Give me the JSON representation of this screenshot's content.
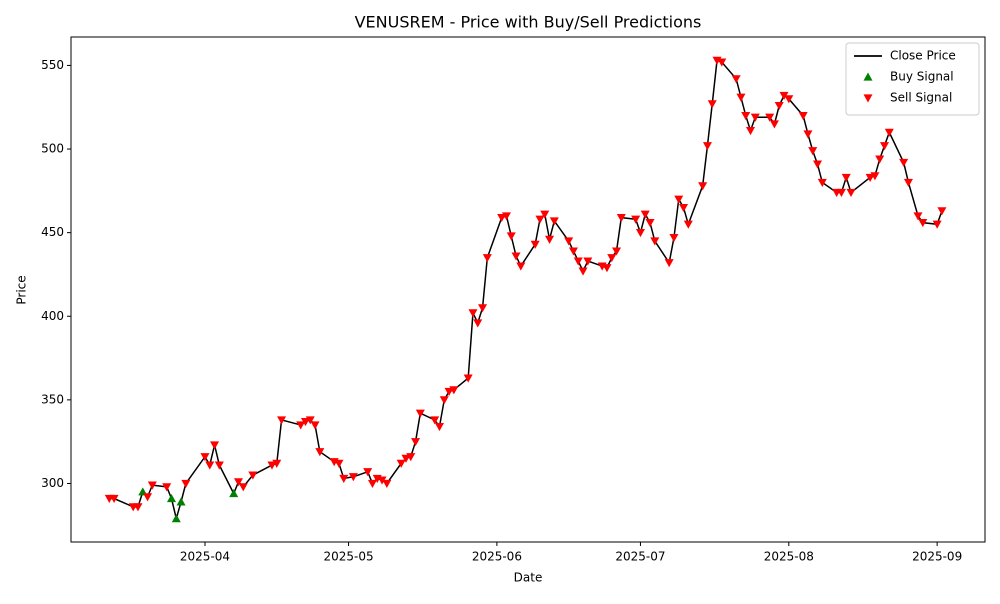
{
  "chart_data": {
    "type": "line",
    "title": "VENUSREM - Price with Buy/Sell Predictions",
    "x_label": "Date",
    "y_label": "Price",
    "xlim": [
      "2025-03-04",
      "2025-09-11"
    ],
    "xticks": [
      {
        "value": "2025-04-01",
        "label": "2025-04"
      },
      {
        "value": "2025-05-01",
        "label": "2025-05"
      },
      {
        "value": "2025-06-01",
        "label": "2025-06"
      },
      {
        "value": "2025-07-01",
        "label": "2025-07"
      },
      {
        "value": "2025-08-01",
        "label": "2025-08"
      },
      {
        "value": "2025-09-01",
        "label": "2025-09"
      }
    ],
    "ylim": [
      265,
      567
    ],
    "yticks": [
      300,
      350,
      400,
      450,
      500,
      550
    ],
    "legend": "upper right",
    "series": [
      {
        "name": "Close Price",
        "type": "line",
        "color": "#000000",
        "x": [
          "2025-03-12",
          "2025-03-13",
          "2025-03-17",
          "2025-03-18",
          "2025-03-19",
          "2025-03-20",
          "2025-03-21",
          "2025-03-24",
          "2025-03-25",
          "2025-03-26",
          "2025-03-27",
          "2025-03-28",
          "2025-04-01",
          "2025-04-02",
          "2025-04-03",
          "2025-04-04",
          "2025-04-07",
          "2025-04-08",
          "2025-04-09",
          "2025-04-11",
          "2025-04-15",
          "2025-04-16",
          "2025-04-17",
          "2025-04-21",
          "2025-04-22",
          "2025-04-23",
          "2025-04-24",
          "2025-04-25",
          "2025-04-28",
          "2025-04-29",
          "2025-04-30",
          "2025-05-02",
          "2025-05-05",
          "2025-05-06",
          "2025-05-07",
          "2025-05-08",
          "2025-05-09",
          "2025-05-12",
          "2025-05-13",
          "2025-05-14",
          "2025-05-15",
          "2025-05-16",
          "2025-05-19",
          "2025-05-20",
          "2025-05-21",
          "2025-05-22",
          "2025-05-23",
          "2025-05-26",
          "2025-05-27",
          "2025-05-28",
          "2025-05-29",
          "2025-05-30",
          "2025-06-02",
          "2025-06-03",
          "2025-06-04",
          "2025-06-05",
          "2025-06-06",
          "2025-06-09",
          "2025-06-10",
          "2025-06-11",
          "2025-06-12",
          "2025-06-13",
          "2025-06-16",
          "2025-06-17",
          "2025-06-18",
          "2025-06-19",
          "2025-06-20",
          "2025-06-23",
          "2025-06-24",
          "2025-06-25",
          "2025-06-26",
          "2025-06-27",
          "2025-06-30",
          "2025-07-01",
          "2025-07-02",
          "2025-07-03",
          "2025-07-04",
          "2025-07-07",
          "2025-07-08",
          "2025-07-09",
          "2025-07-10",
          "2025-07-11",
          "2025-07-14",
          "2025-07-15",
          "2025-07-16",
          "2025-07-17",
          "2025-07-18",
          "2025-07-21",
          "2025-07-22",
          "2025-07-23",
          "2025-07-24",
          "2025-07-25",
          "2025-07-28",
          "2025-07-29",
          "2025-07-30",
          "2025-07-31",
          "2025-08-01",
          "2025-08-04",
          "2025-08-05",
          "2025-08-06",
          "2025-08-07",
          "2025-08-08",
          "2025-08-11",
          "2025-08-12",
          "2025-08-13",
          "2025-08-14",
          "2025-08-18",
          "2025-08-19",
          "2025-08-20",
          "2025-08-21",
          "2025-08-22",
          "2025-08-25",
          "2025-08-26",
          "2025-08-28",
          "2025-08-29",
          "2025-09-01",
          "2025-09-02"
        ],
        "values": [
          291,
          291,
          286,
          286,
          295,
          292,
          299,
          298,
          291,
          279,
          289,
          300,
          316,
          311,
          323,
          311,
          294,
          301,
          298,
          305,
          311,
          312,
          338,
          335,
          337,
          338,
          335,
          319,
          313,
          312,
          303,
          304,
          307,
          300,
          303,
          302,
          300,
          312,
          315,
          316,
          325,
          342,
          338,
          334,
          350,
          355,
          356,
          363,
          402,
          396,
          405,
          435,
          459,
          460,
          448,
          436,
          430,
          443,
          458,
          461,
          446,
          457,
          445,
          439,
          433,
          427,
          433,
          430,
          429,
          435,
          439,
          459,
          458,
          450,
          461,
          456,
          445,
          432,
          447,
          470,
          465,
          455,
          478,
          502,
          527,
          553,
          552,
          542,
          531,
          520,
          511,
          519,
          519,
          515,
          526,
          532,
          530,
          520,
          509,
          499,
          491,
          480,
          474,
          474,
          483,
          474,
          483,
          484,
          494,
          502,
          510,
          492,
          480,
          460,
          456,
          455,
          463
        ]
      },
      {
        "name": "Buy Signal",
        "type": "scatter",
        "marker": "up",
        "color": "#008000",
        "x": [
          "2025-03-19",
          "2025-03-25",
          "2025-03-26",
          "2025-03-27",
          "2025-04-07"
        ],
        "values": [
          295,
          291,
          279,
          289,
          294
        ]
      },
      {
        "name": "Sell Signal",
        "type": "scatter",
        "marker": "down",
        "color": "#ff0000",
        "x": [
          "2025-03-12",
          "2025-03-13",
          "2025-03-17",
          "2025-03-18",
          "2025-03-20",
          "2025-03-21",
          "2025-03-24",
          "2025-03-28",
          "2025-04-01",
          "2025-04-02",
          "2025-04-03",
          "2025-04-04",
          "2025-04-08",
          "2025-04-09",
          "2025-04-11",
          "2025-04-15",
          "2025-04-16",
          "2025-04-17",
          "2025-04-21",
          "2025-04-22",
          "2025-04-23",
          "2025-04-24",
          "2025-04-25",
          "2025-04-28",
          "2025-04-29",
          "2025-04-30",
          "2025-05-02",
          "2025-05-05",
          "2025-05-06",
          "2025-05-07",
          "2025-05-08",
          "2025-05-09",
          "2025-05-12",
          "2025-05-13",
          "2025-05-14",
          "2025-05-15",
          "2025-05-16",
          "2025-05-19",
          "2025-05-20",
          "2025-05-21",
          "2025-05-22",
          "2025-05-23",
          "2025-05-26",
          "2025-05-27",
          "2025-05-28",
          "2025-05-29",
          "2025-05-30",
          "2025-06-02",
          "2025-06-03",
          "2025-06-04",
          "2025-06-05",
          "2025-06-06",
          "2025-06-09",
          "2025-06-10",
          "2025-06-11",
          "2025-06-12",
          "2025-06-13",
          "2025-06-16",
          "2025-06-17",
          "2025-06-18",
          "2025-06-19",
          "2025-06-20",
          "2025-06-23",
          "2025-06-24",
          "2025-06-25",
          "2025-06-26",
          "2025-06-27",
          "2025-06-30",
          "2025-07-01",
          "2025-07-02",
          "2025-07-03",
          "2025-07-04",
          "2025-07-07",
          "2025-07-08",
          "2025-07-09",
          "2025-07-10",
          "2025-07-11",
          "2025-07-14",
          "2025-07-15",
          "2025-07-16",
          "2025-07-17",
          "2025-07-18",
          "2025-07-21",
          "2025-07-22",
          "2025-07-23",
          "2025-07-24",
          "2025-07-25",
          "2025-07-28",
          "2025-07-29",
          "2025-07-30",
          "2025-07-31",
          "2025-08-01",
          "2025-08-04",
          "2025-08-05",
          "2025-08-06",
          "2025-08-07",
          "2025-08-08",
          "2025-08-11",
          "2025-08-12",
          "2025-08-13",
          "2025-08-14",
          "2025-08-18",
          "2025-08-19",
          "2025-08-20",
          "2025-08-21",
          "2025-08-22",
          "2025-08-25",
          "2025-08-26",
          "2025-08-28",
          "2025-08-29",
          "2025-09-01",
          "2025-09-02"
        ],
        "values": [
          291,
          291,
          286,
          286,
          292,
          299,
          298,
          300,
          316,
          311,
          323,
          311,
          301,
          298,
          305,
          311,
          312,
          338,
          335,
          337,
          338,
          335,
          319,
          313,
          312,
          303,
          304,
          307,
          300,
          303,
          302,
          300,
          312,
          315,
          316,
          325,
          342,
          338,
          334,
          350,
          355,
          356,
          363,
          402,
          396,
          405,
          435,
          459,
          460,
          448,
          436,
          430,
          443,
          458,
          461,
          446,
          457,
          445,
          439,
          433,
          427,
          433,
          430,
          429,
          435,
          439,
          459,
          458,
          450,
          461,
          456,
          445,
          432,
          447,
          470,
          465,
          455,
          478,
          502,
          527,
          553,
          552,
          542,
          531,
          520,
          511,
          519,
          519,
          515,
          526,
          532,
          530,
          520,
          509,
          499,
          491,
          480,
          474,
          474,
          483,
          474,
          483,
          484,
          494,
          502,
          510,
          492,
          480,
          460,
          456,
          455,
          463
        ]
      }
    ]
  }
}
